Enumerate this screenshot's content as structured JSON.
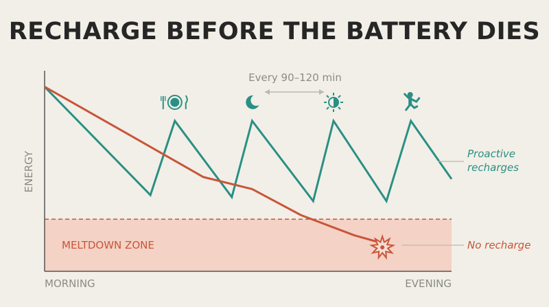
{
  "chart_data": {
    "type": "line",
    "title": "RECHARGE BEFORE THE BATTERY DIES",
    "ylabel": "ENERGY",
    "x_labels": {
      "start": "MORNING",
      "end": "EVENING"
    },
    "interval_annotation": "Every 90–120 min",
    "zone": {
      "label": "MELTDOWN ZONE",
      "threshold": 26
    },
    "xlim": [
      0,
      100
    ],
    "ylim": [
      0,
      100
    ],
    "series": [
      {
        "name": "Proactive recharges",
        "color": "#2a8f84",
        "x": [
          0,
          26,
          32,
          46,
          51,
          66,
          71,
          84,
          90,
          100
        ],
        "y": [
          92,
          38,
          75,
          37,
          75,
          35,
          75,
          35,
          75,
          46
        ],
        "markers": [
          {
            "x": 32,
            "icon": "meal-icon"
          },
          {
            "x": 51,
            "icon": "moon-icon"
          },
          {
            "x": 71,
            "icon": "sun-icon"
          },
          {
            "x": 90,
            "icon": "stretch-icon"
          }
        ]
      },
      {
        "name": "No recharge",
        "color": "#c8553a",
        "x": [
          0,
          20,
          39,
          51,
          63,
          76,
          83
        ],
        "y": [
          92,
          69,
          47,
          41,
          28,
          18,
          14
        ],
        "end_marker": "burst-icon"
      }
    ],
    "colors": {
      "zone_fill": "#f4d2c5",
      "zone_line": "#c8553a",
      "axis": "#555555",
      "annotation": "#b9b9b4"
    }
  }
}
